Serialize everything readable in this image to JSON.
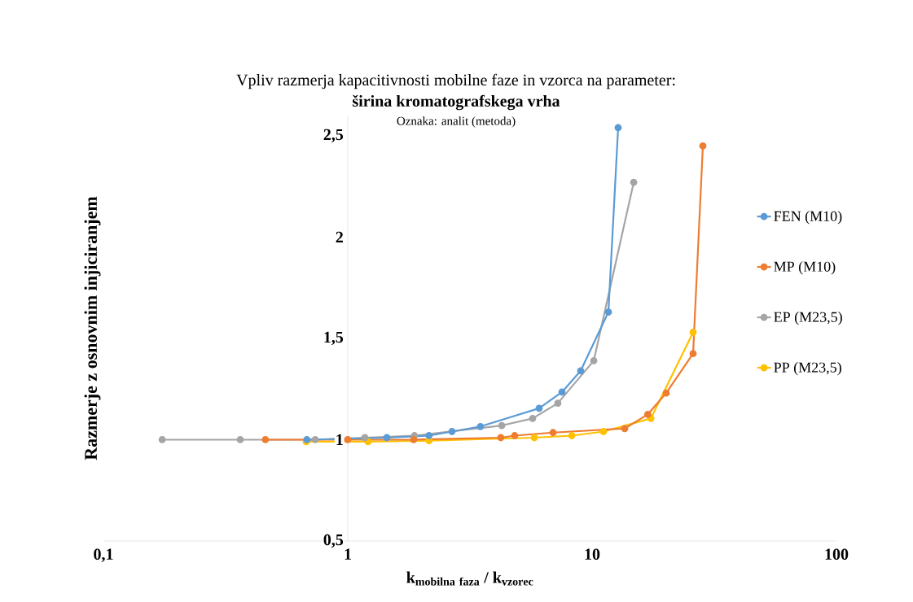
{
  "chart_data": {
    "type": "line",
    "title": "Vpliv razmerja kapacitivnosti mobilne faze in vzorca na parameter:",
    "subtitle": "širina kromatografskega vrha",
    "annotations": [
      "Oznaka: analit (metoda)"
    ],
    "xlabel": "\\mathbf{k}_{\\mathbf{mobilna\\ faza}}\\mbox{\\bfseries\\ /\\ }\\mathbf{k}_{\\mathbf{vzorec}}",
    "ylabel": "Razmerje z osnovnim injiciranjem",
    "log": "x",
    "xlim": [
      0.1,
      100
    ],
    "xticks": [
      {
        "value": 0.1,
        "label": "0,1"
      },
      1,
      10,
      100
    ],
    "ylim": [
      0.5,
      2.6
    ],
    "yticks": [
      {
        "value": 0.5,
        "label": "0,5"
      },
      1,
      {
        "value": 1.5,
        "label": "1,5"
      },
      2,
      {
        "value": 2.5,
        "label": "2,5"
      }
    ],
    "marker": "circle",
    "line_style": "solid",
    "legend": "right",
    "series": [
      {
        "name": "FEN (M10)",
        "color": "#5b9bd5",
        "x": [
          0.68,
          1.445,
          2.15,
          2.67,
          3.49,
          6.07,
          7.53,
          8.98,
          11.66,
          12.78
        ],
        "values": [
          1.0,
          1.01,
          1.02,
          1.04,
          1.065,
          1.155,
          1.235,
          1.34,
          1.63,
          2.54
        ]
      },
      {
        "name": "MP (M10)",
        "color": "#ed7d31",
        "x": [
          0.46,
          1.0,
          1.86,
          4.23,
          4.82,
          6.92,
          13.6,
          16.9,
          20.1,
          25.9,
          28.4
        ],
        "values": [
          1.0,
          1.0,
          1.0,
          1.01,
          1.02,
          1.035,
          1.055,
          1.125,
          1.23,
          1.425,
          2.45
        ]
      },
      {
        "name": "EP (M23,5)",
        "color": "#a5a5a5",
        "x": [
          0.174,
          0.363,
          0.736,
          1.175,
          1.876,
          4.27,
          5.71,
          7.24,
          10.16,
          14.8
        ],
        "values": [
          1.0,
          1.0,
          1.0,
          1.01,
          1.02,
          1.07,
          1.105,
          1.18,
          1.39,
          2.27
        ]
      },
      {
        "name": "PP (M23,5)",
        "color": "#ffc000",
        "x": [
          0.676,
          1.21,
          2.15,
          5.8,
          8.26,
          11.13,
          17.4,
          25.9
        ],
        "values": [
          0.99,
          0.99,
          0.995,
          1.01,
          1.02,
          1.04,
          1.105,
          1.53
        ]
      }
    ]
  }
}
